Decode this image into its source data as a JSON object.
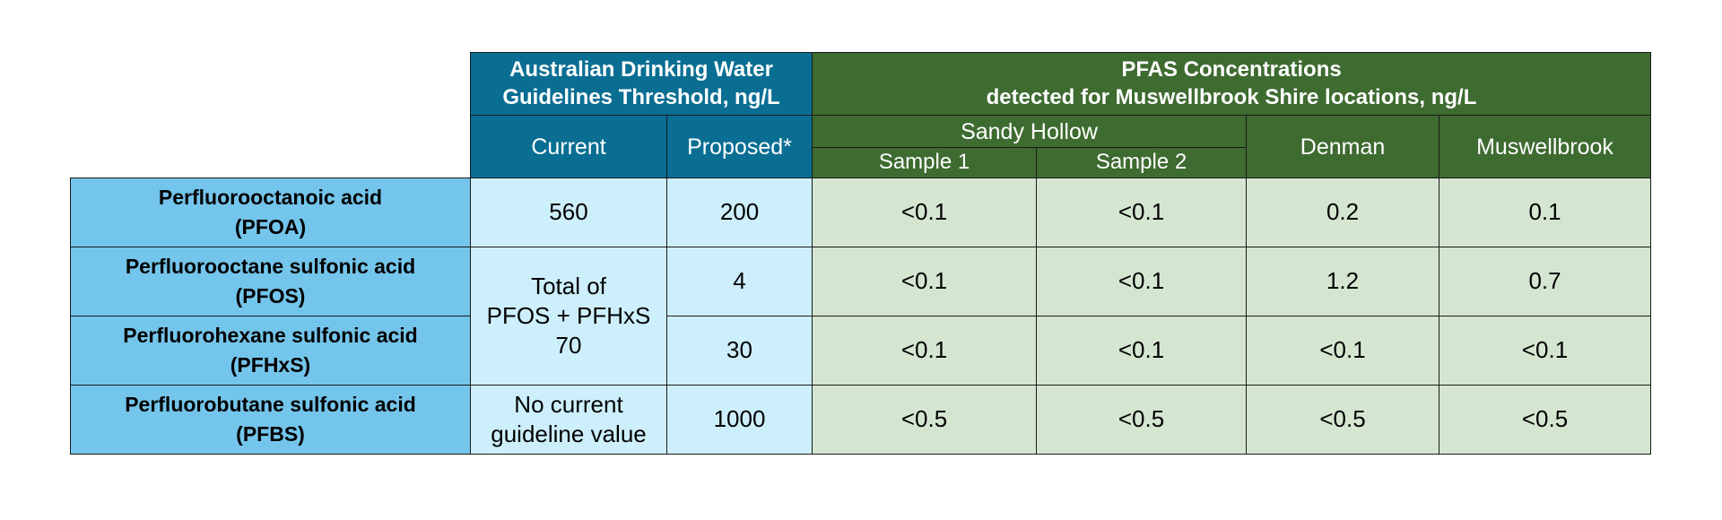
{
  "header": {
    "guideline_title_line1": "Australian Drinking Water",
    "guideline_title_line2": "Guidelines Threshold, ng/L",
    "pfas_title_line1": "PFAS Concentrations",
    "pfas_title_line2": "detected for Muswellbrook Shire locations, ng/L",
    "current": "Current",
    "proposed": "Proposed*",
    "sandy_hollow": "Sandy Hollow",
    "sample1": "Sample 1",
    "sample2": "Sample 2",
    "denman": "Denman",
    "muswellbrook": "Muswellbrook"
  },
  "rows": [
    {
      "name": "Perfluorooctanoic acid",
      "abbr": "(PFOA)",
      "current": "560",
      "proposed": "200",
      "sample1": "<0.1",
      "sample2": "<0.1",
      "denman": "0.2",
      "muswellbrook": "0.1"
    },
    {
      "name": "Perfluorooctane sulfonic acid",
      "abbr": "(PFOS)",
      "proposed": "4",
      "sample1": "<0.1",
      "sample2": "<0.1",
      "denman": "1.2",
      "muswellbrook": "0.7"
    },
    {
      "name": "Perfluorohexane sulfonic acid",
      "abbr": "(PFHxS)",
      "proposed": "30",
      "sample1": "<0.1",
      "sample2": "<0.1",
      "denman": "<0.1",
      "muswellbrook": "<0.1"
    },
    {
      "name": "Perfluorobutane sulfonic acid",
      "abbr": "(PFBS)",
      "current_line1": "No current",
      "current_line2": "guideline value",
      "proposed": "1000",
      "sample1": "<0.5",
      "sample2": "<0.5",
      "denman": "<0.5",
      "muswellbrook": "<0.5"
    }
  ],
  "combined_current": {
    "line1": "Total of",
    "line2": "PFOS + PFHxS",
    "line3": "70"
  },
  "colors": {
    "guideline_header": "#0a6e93",
    "pfas_header": "#3e6b30",
    "chemical_cells": "#74c5eb",
    "guideline_cells": "#cdeffc",
    "concentration_cells": "#d5e6d0"
  }
}
